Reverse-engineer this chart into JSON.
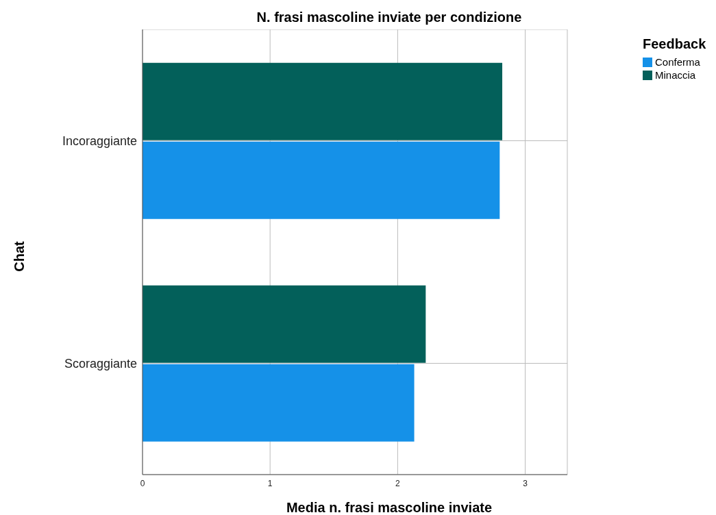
{
  "chart_data": {
    "type": "bar",
    "orientation": "horizontal",
    "title": "N. frasi mascoline inviate per condizione",
    "xlabel": "Media n. frasi mascoline inviate",
    "ylabel": "Chat",
    "legend_title": "Feedback",
    "legend": "top right",
    "grid": true,
    "categories": [
      "Incoraggiante",
      "Scoraggiante"
    ],
    "series": [
      {
        "name": "Conferma",
        "color": "#1591e8",
        "values": [
          2.8,
          2.13
        ]
      },
      {
        "name": "Minaccia",
        "color": "#03605a",
        "values": [
          2.82,
          2.22
        ]
      }
    ],
    "xlim": [
      0,
      3.33
    ],
    "xticks": [
      0,
      1,
      2,
      3
    ]
  }
}
